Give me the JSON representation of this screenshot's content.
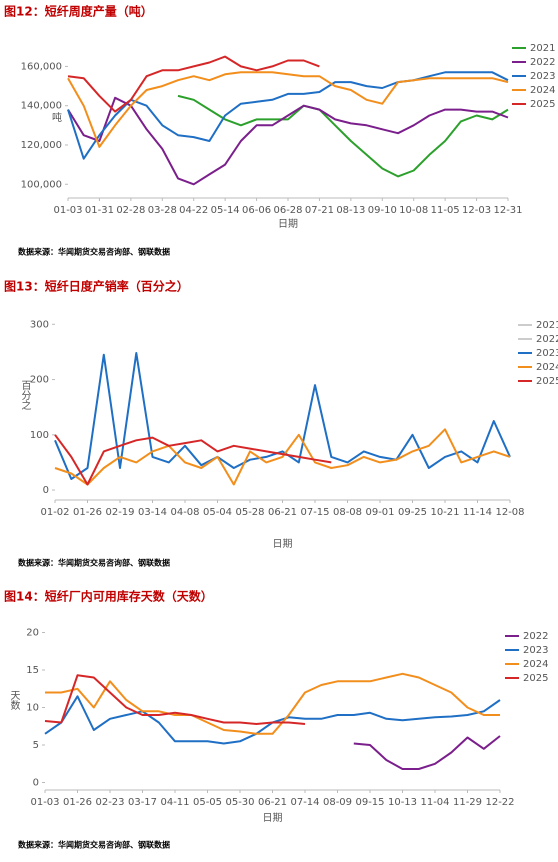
{
  "chart_data": [
    {
      "type": "line",
      "title": "图12：短纤周度产量（吨）",
      "y_label": "吨",
      "x_label": "日期",
      "source": "数据来源：华闻期货交易咨询部、钢联数据",
      "grid": false,
      "legend_position": "right",
      "categories": [
        "01-03",
        null,
        "01-31",
        null,
        "02-28",
        null,
        "03-28",
        null,
        "04-22",
        null,
        "05-14",
        null,
        "06-06",
        null,
        "06-28",
        null,
        "07-21",
        null,
        "08-13",
        null,
        "09-10",
        null,
        "10-08",
        null,
        "11-05",
        null,
        "12-03",
        null,
        "12-31"
      ],
      "ylim": [
        93000,
        176000
      ],
      "yticks": [
        {
          "value": 100000,
          "label": "100,000"
        },
        {
          "value": 120000,
          "label": "120,000"
        },
        {
          "value": 140000,
          "label": "140,000"
        },
        {
          "value": 160000,
          "label": "160,000"
        }
      ],
      "series": [
        {
          "name": "2021",
          "color": "#2ca02c",
          "values": [
            null,
            null,
            null,
            null,
            null,
            null,
            null,
            145000,
            143000,
            138000,
            133000,
            130000,
            133000,
            133000,
            133000,
            140000,
            138000,
            130000,
            122000,
            115000,
            108000,
            104000,
            107000,
            115000,
            122000,
            132000,
            135000,
            133000,
            138000
          ]
        },
        {
          "name": "2022",
          "color": "#7b1f8c",
          "values": [
            138000,
            125000,
            122000,
            144000,
            140000,
            128000,
            118000,
            103000,
            100000,
            105000,
            110000,
            122000,
            130000,
            130000,
            135000,
            140000,
            138000,
            133000,
            131000,
            130000,
            128000,
            126000,
            130000,
            135000,
            138000,
            138000,
            137000,
            137000,
            134000
          ]
        },
        {
          "name": "2023",
          "color": "#1f6fc5",
          "values": [
            138000,
            113000,
            125000,
            135000,
            143000,
            140000,
            130000,
            125000,
            124000,
            122000,
            135000,
            141000,
            142000,
            143000,
            146000,
            146000,
            147000,
            152000,
            152000,
            150000,
            149000,
            152000,
            153000,
            155000,
            157000,
            157000,
            157000,
            157000,
            153000
          ]
        },
        {
          "name": "2024",
          "color": "#f28e1c",
          "values": [
            154000,
            140000,
            119000,
            130000,
            140000,
            148000,
            150000,
            153000,
            155000,
            153000,
            156000,
            157000,
            157000,
            157000,
            156000,
            155000,
            155000,
            150000,
            148000,
            143000,
            141000,
            152000,
            153000,
            154000,
            154000,
            154000,
            154000,
            154000,
            152000
          ]
        },
        {
          "name": "2025",
          "color": "#d62728",
          "values": [
            155000,
            154000,
            145000,
            137000,
            143000,
            155000,
            158000,
            158000,
            160000,
            162000,
            165000,
            160000,
            158000,
            160000,
            163000,
            163000,
            160000,
            null,
            null,
            null,
            null,
            null,
            null,
            null,
            null,
            null,
            null,
            null,
            null
          ]
        }
      ]
    },
    {
      "type": "line",
      "title": "图13：短纤日度产销率（百分之）",
      "y_label": "百分之",
      "x_label": "日期",
      "source": "数据来源：华闻期货交易咨询部、钢联数据",
      "grid": false,
      "legend_position": "right",
      "categories": [
        "01-02",
        null,
        "01-26",
        null,
        "02-19",
        null,
        "03-14",
        null,
        "04-08",
        null,
        "05-04",
        null,
        "05-28",
        null,
        "06-21",
        null,
        "07-15",
        null,
        "08-08",
        null,
        "09-01",
        null,
        "09-25",
        null,
        "10-21",
        null,
        "11-14",
        null,
        "12-08"
      ],
      "ylim": [
        -18,
        315
      ],
      "yticks": [
        0,
        100,
        200,
        300
      ],
      "series": [
        {
          "name": "2021",
          "color": "#cccccc",
          "values": [
            null,
            null,
            null,
            null,
            null,
            null,
            null,
            null,
            null,
            null,
            null,
            null,
            null,
            null,
            null,
            null,
            null,
            null,
            null,
            null,
            null,
            null,
            null,
            null,
            null,
            null,
            null,
            null,
            null
          ]
        },
        {
          "name": "2022",
          "color": "#cccccc",
          "values": [
            null,
            null,
            null,
            null,
            null,
            null,
            null,
            null,
            null,
            null,
            null,
            null,
            null,
            null,
            null,
            null,
            null,
            null,
            null,
            null,
            null,
            null,
            null,
            null,
            null,
            null,
            null,
            null,
            null
          ]
        },
        {
          "name": "2023",
          "color": "#1f6fc5",
          "values": [
            90,
            20,
            40,
            245,
            40,
            248,
            60,
            50,
            80,
            45,
            60,
            40,
            55,
            60,
            70,
            50,
            190,
            60,
            50,
            70,
            60,
            55,
            100,
            40,
            60,
            70,
            50,
            125,
            60
          ]
        },
        {
          "name": "2024",
          "color": "#f28e1c",
          "values": [
            40,
            30,
            10,
            40,
            60,
            50,
            70,
            80,
            50,
            40,
            60,
            10,
            70,
            50,
            60,
            100,
            50,
            40,
            45,
            60,
            50,
            55,
            70,
            80,
            110,
            50,
            60,
            70,
            60
          ]
        },
        {
          "name": "2025",
          "color": "#d62728",
          "values": [
            100,
            60,
            10,
            70,
            80,
            90,
            95,
            80,
            85,
            90,
            70,
            80,
            75,
            70,
            65,
            60,
            55,
            50,
            null,
            null,
            null,
            null,
            null,
            null,
            null,
            null,
            null,
            null,
            null
          ]
        }
      ]
    },
    {
      "type": "line",
      "title": "图14：短纤厂内可用库存天数（天数）",
      "y_label": "天数",
      "x_label": "日期",
      "source": "数据来源：华闻期货交易咨询部、钢联数据",
      "grid": false,
      "legend_position": "right",
      "categories": [
        "01-03",
        null,
        "01-26",
        null,
        "02-23",
        null,
        "03-17",
        null,
        "04-11",
        null,
        "05-05",
        null,
        "05-30",
        null,
        "06-21",
        null,
        "07-14",
        null,
        "08-09",
        null,
        "09-15",
        null,
        "10-13",
        null,
        "11-04",
        null,
        "11-29",
        null,
        "12-22"
      ],
      "ylim": [
        -1,
        21
      ],
      "yticks": [
        0,
        5,
        10,
        15,
        20
      ],
      "series": [
        {
          "name": "2022",
          "color": "#7b1f8c",
          "values": [
            null,
            null,
            null,
            null,
            null,
            null,
            null,
            null,
            null,
            null,
            null,
            null,
            null,
            null,
            null,
            null,
            null,
            null,
            null,
            5.2,
            5,
            3,
            1.8,
            1.8,
            2.5,
            4,
            6,
            4.5,
            6.2
          ]
        },
        {
          "name": "2023",
          "color": "#1f6fc5",
          "values": [
            6.5,
            8,
            11.5,
            7,
            8.5,
            9,
            9.5,
            8,
            5.5,
            5.5,
            5.5,
            5.2,
            5.5,
            6.5,
            8,
            8.7,
            8.5,
            8.5,
            9,
            9,
            9.3,
            8.5,
            8.3,
            8.5,
            8.7,
            8.8,
            9,
            9.5,
            11
          ]
        },
        {
          "name": "2024",
          "color": "#f28e1c",
          "values": [
            12,
            12,
            12.5,
            10,
            13.5,
            11,
            9.5,
            9.5,
            9,
            9,
            8,
            7,
            6.8,
            6.5,
            6.5,
            9,
            12,
            13,
            13.5,
            13.5,
            13.5,
            14,
            14.5,
            14,
            13,
            12,
            10,
            9,
            9
          ]
        },
        {
          "name": "2025",
          "color": "#d62728",
          "values": [
            8.2,
            8,
            14.3,
            14,
            12,
            10,
            9,
            9,
            9.3,
            9,
            8.5,
            8,
            8,
            7.8,
            8,
            8,
            7.8,
            null,
            null,
            null,
            null,
            null,
            null,
            null,
            null,
            null,
            null,
            null,
            null
          ]
        }
      ]
    }
  ]
}
